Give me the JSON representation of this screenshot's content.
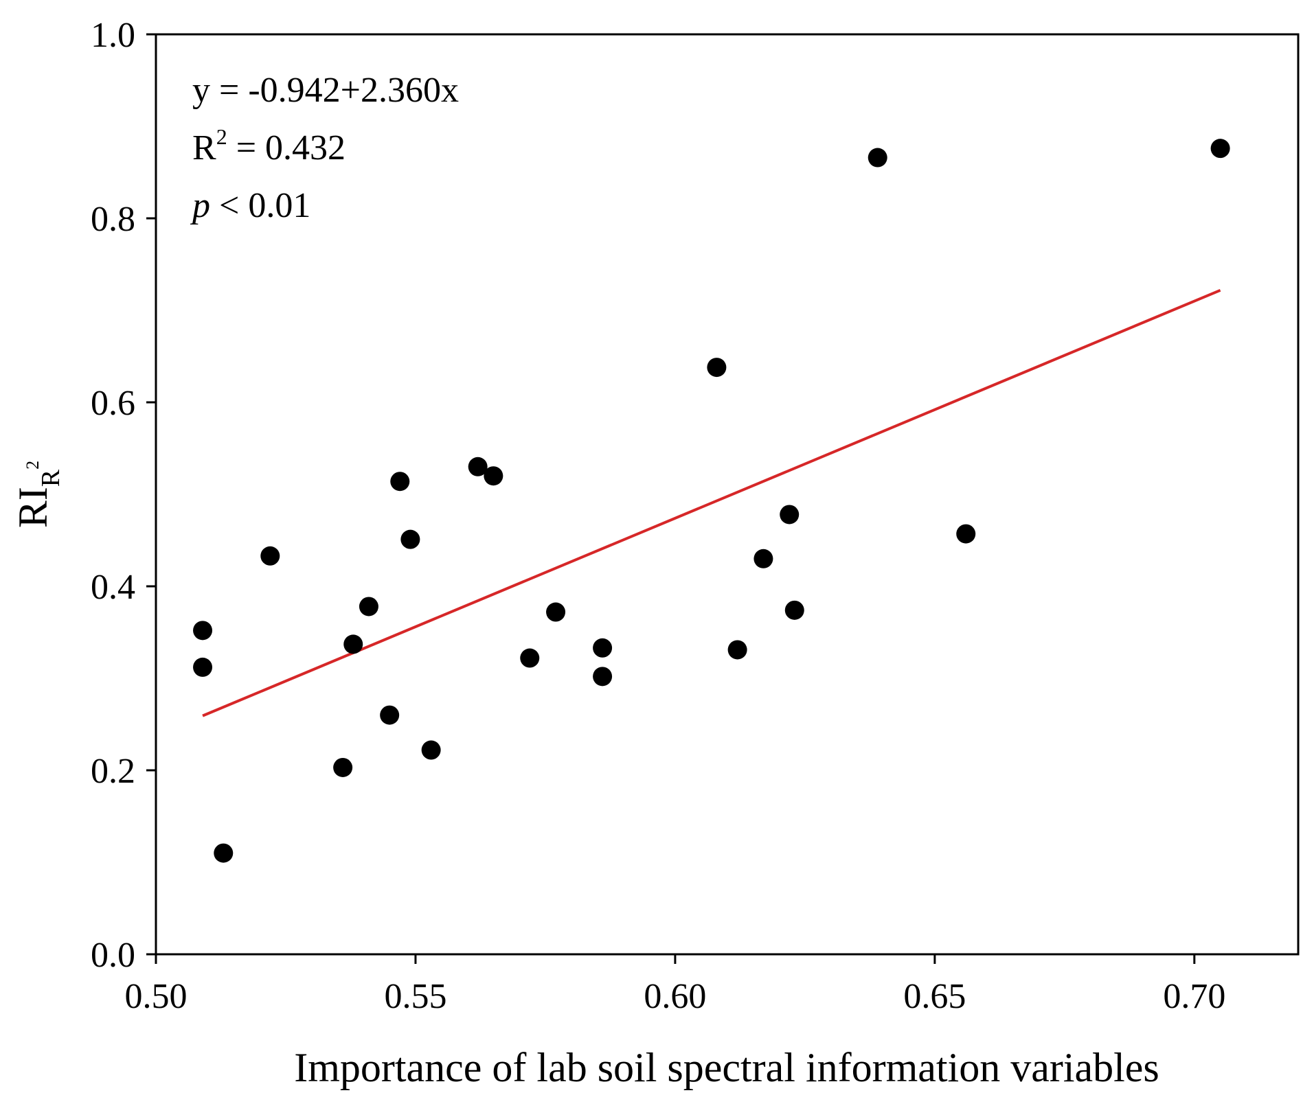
{
  "chart_data": {
    "type": "scatter",
    "xlabel": "Importance of lab soil spectral information variables",
    "ylabel_main": "RI",
    "ylabel_sub": "R",
    "ylabel_sup": "2",
    "xlim": [
      0.5,
      0.72
    ],
    "ylim": [
      0.0,
      1.0
    ],
    "xticks": [
      0.5,
      0.55,
      0.6,
      0.65,
      0.7
    ],
    "xtick_labels": [
      "0.50",
      "0.55",
      "0.60",
      "0.65",
      "0.70"
    ],
    "yticks": [
      0.0,
      0.2,
      0.4,
      0.6,
      0.8,
      1.0
    ],
    "ytick_labels": [
      "0.0",
      "0.2",
      "0.4",
      "0.6",
      "0.8",
      "1.0"
    ],
    "grid": false,
    "marker_color": "#000000",
    "fit_color": "#d62728",
    "annotations": {
      "equation": "y = -0.942+2.360x",
      "r2_prefix": "R",
      "r2_sup": "2",
      "r2_value": " = 0.432",
      "p_symbol": "p",
      "p_value": " < 0.01"
    },
    "fit": {
      "intercept": -0.942,
      "slope": 2.36,
      "x_range": [
        0.509,
        0.705
      ]
    },
    "points": [
      {
        "x": 0.509,
        "y": 0.352
      },
      {
        "x": 0.509,
        "y": 0.312
      },
      {
        "x": 0.513,
        "y": 0.11
      },
      {
        "x": 0.522,
        "y": 0.433
      },
      {
        "x": 0.536,
        "y": 0.203
      },
      {
        "x": 0.538,
        "y": 0.337
      },
      {
        "x": 0.541,
        "y": 0.378
      },
      {
        "x": 0.545,
        "y": 0.26
      },
      {
        "x": 0.547,
        "y": 0.514
      },
      {
        "x": 0.549,
        "y": 0.451
      },
      {
        "x": 0.553,
        "y": 0.222
      },
      {
        "x": 0.562,
        "y": 0.53
      },
      {
        "x": 0.565,
        "y": 0.52
      },
      {
        "x": 0.572,
        "y": 0.322
      },
      {
        "x": 0.577,
        "y": 0.372
      },
      {
        "x": 0.586,
        "y": 0.333
      },
      {
        "x": 0.586,
        "y": 0.302
      },
      {
        "x": 0.608,
        "y": 0.638
      },
      {
        "x": 0.612,
        "y": 0.331
      },
      {
        "x": 0.617,
        "y": 0.43
      },
      {
        "x": 0.622,
        "y": 0.478
      },
      {
        "x": 0.623,
        "y": 0.374
      },
      {
        "x": 0.639,
        "y": 0.866
      },
      {
        "x": 0.656,
        "y": 0.457
      },
      {
        "x": 0.705,
        "y": 0.876
      }
    ]
  }
}
